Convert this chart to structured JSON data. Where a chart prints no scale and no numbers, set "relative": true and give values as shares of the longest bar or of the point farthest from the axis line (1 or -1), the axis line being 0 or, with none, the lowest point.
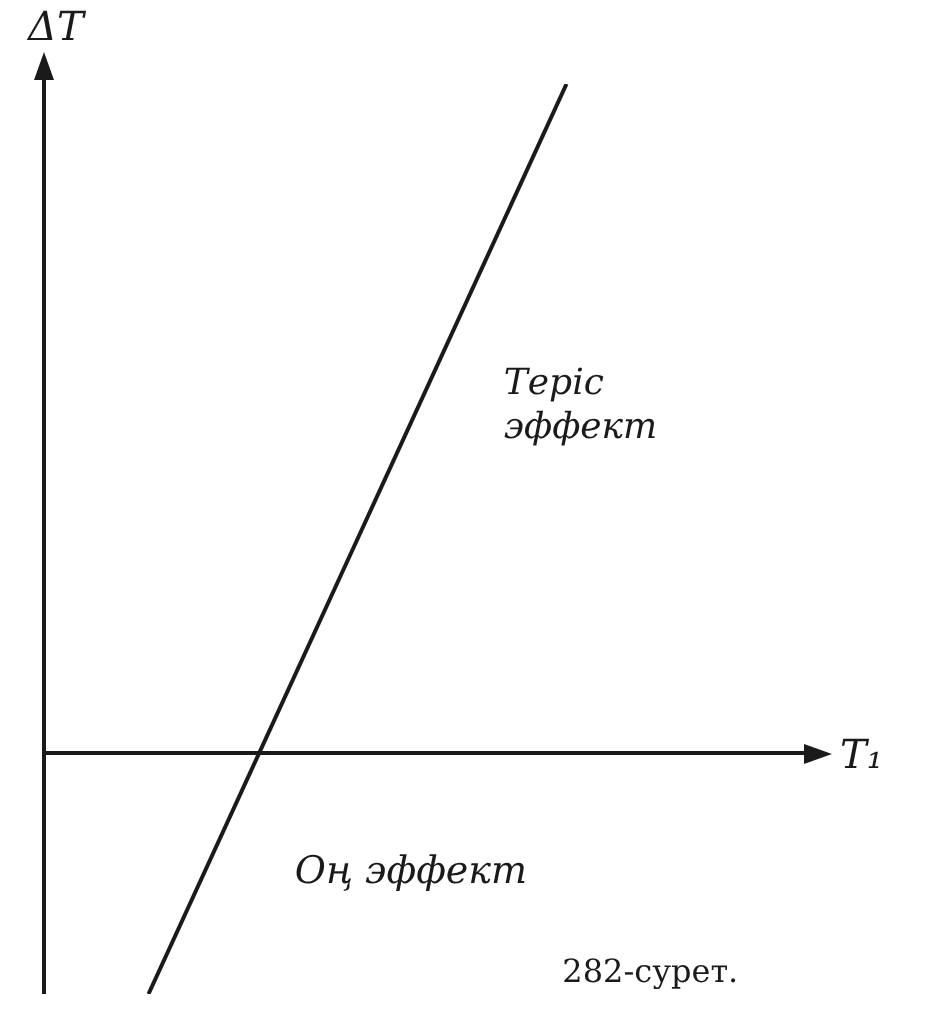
{
  "chart_data": {
    "type": "line",
    "relative": true,
    "xlabel": "T₁",
    "ylabel": "ΔT",
    "categories": [
      null,
      null,
      null,
      null
    ],
    "series": [
      {
        "color": "#1a1a1a",
        "values": [
          -0.36,
          0.32,
          1,
          null
        ]
      }
    ],
    "annotations": [
      "Теріс эффект",
      "Оң эффект",
      "282-сурет."
    ],
    "legend": false,
    "marker": "none",
    "line_style": "solid"
  }
}
